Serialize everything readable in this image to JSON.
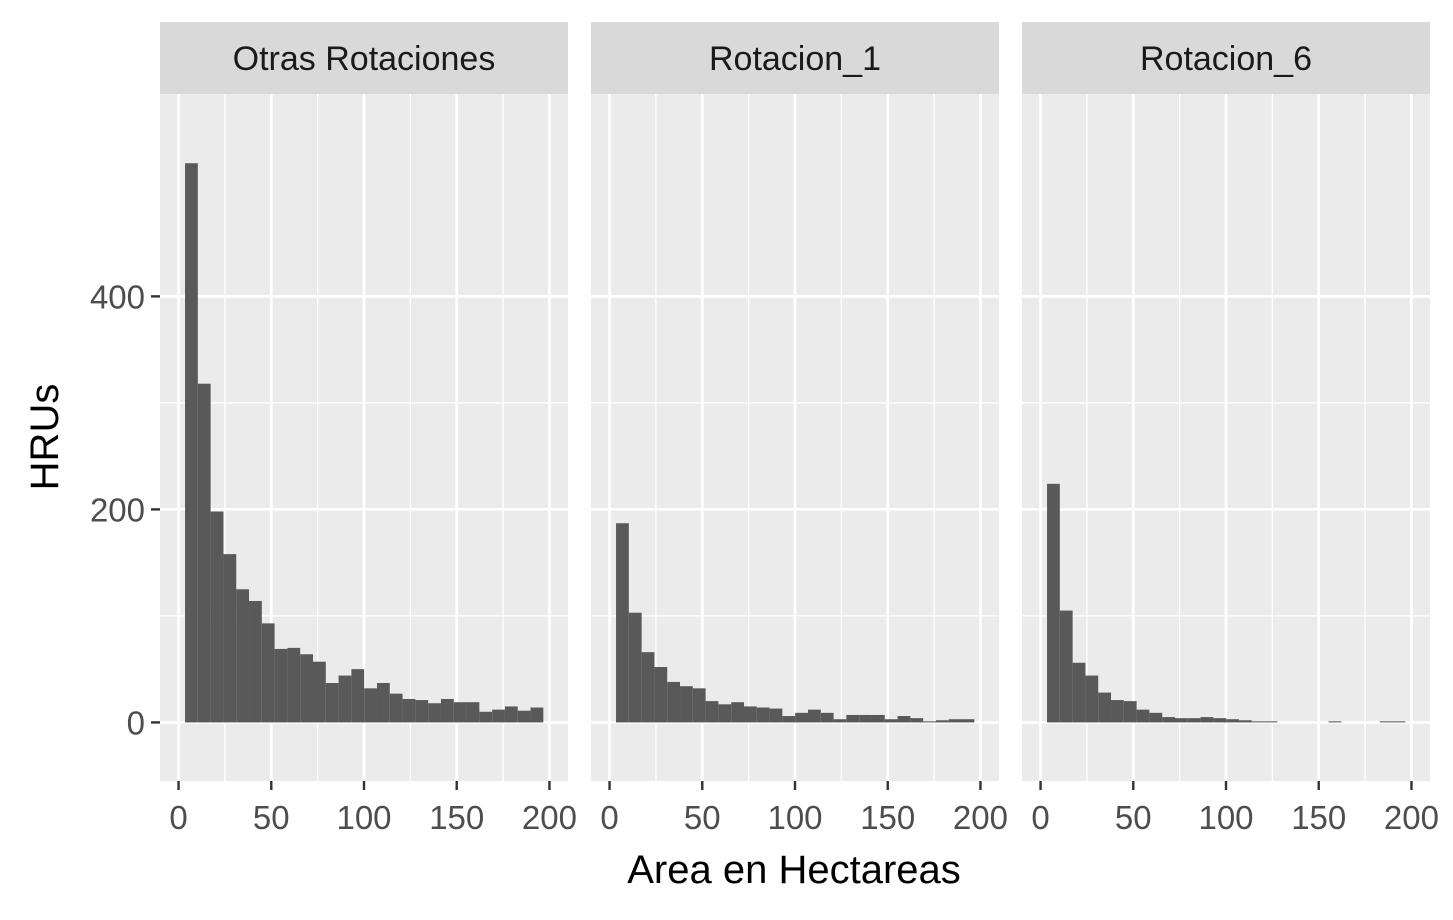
{
  "chart_data": {
    "type": "bar",
    "subtype": "faceted-histogram",
    "title": "",
    "xlabel": "Area en Hectareas",
    "ylabel": "HRUs",
    "xlim": [
      -10,
      210
    ],
    "ylim": [
      -55,
      590
    ],
    "x_ticks": [
      0,
      50,
      100,
      150,
      200
    ],
    "x_tick_labels": [
      "0",
      "50",
      "100",
      "150",
      "200"
    ],
    "y_ticks": [
      0,
      200,
      400
    ],
    "y_tick_labels": [
      "0",
      "200",
      "400"
    ],
    "bin_width": 6.9,
    "bin_start": 3.5,
    "colors": {
      "panel_background": "#ebebeb",
      "strip_background": "#d9d9d9",
      "grid": "#ffffff",
      "bar_fill": "#595959",
      "tick_label": "#4d4d4d",
      "axis_title": "#000000"
    },
    "facets": [
      {
        "label": "Otras Rotaciones",
        "values": [
          525,
          318,
          198,
          158,
          125,
          114,
          93,
          69,
          70,
          64,
          57,
          37,
          44,
          50,
          32,
          37,
          27,
          22,
          21,
          18,
          22,
          19,
          19,
          10,
          12,
          15,
          11,
          14
        ]
      },
      {
        "label": "Rotacion_1",
        "values": [
          187,
          103,
          66,
          52,
          38,
          34,
          32,
          20,
          17,
          19,
          15,
          14,
          13,
          6,
          9,
          12,
          9,
          3,
          7,
          7,
          7,
          3,
          6,
          4,
          1,
          2,
          3,
          3
        ]
      },
      {
        "label": "Rotacion_6",
        "values": [
          224,
          105,
          56,
          44,
          28,
          21,
          20,
          12,
          9,
          5,
          4,
          4,
          5,
          4,
          3,
          2,
          1,
          1,
          0,
          0,
          0,
          0,
          1,
          0,
          0,
          0,
          1,
          1
        ]
      }
    ]
  }
}
